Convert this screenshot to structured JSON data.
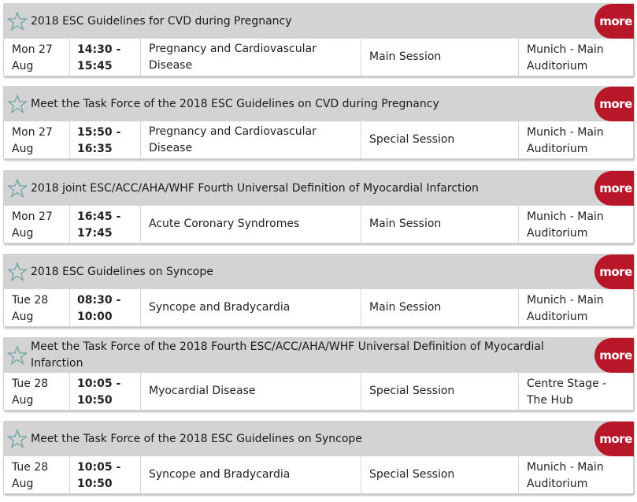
{
  "sessions": [
    {
      "title": "2018 ESC Guidelines for CVD during Pregnancy",
      "more": "more",
      "day": "Mon 27",
      "month": "Aug",
      "start": "14:30 -",
      "end": "15:45",
      "topic": "Pregnancy and Cardiovascular Disease",
      "type": "Main Session",
      "loc1": "Munich - Main",
      "loc2": "Auditorium"
    },
    {
      "title": "Meet the Task Force of the 2018 ESC Guidelines on CVD during Pregnancy",
      "more": "more",
      "day": "Mon 27",
      "month": "Aug",
      "start": "15:50 -",
      "end": "16:35",
      "topic": "Pregnancy and Cardiovascular Disease",
      "type": "Special Session",
      "loc1": "Munich - Main",
      "loc2": "Auditorium"
    },
    {
      "title": "2018 joint ESC/ACC/AHA/WHF Fourth Universal Definition of Myocardial Infarction",
      "more": "more",
      "day": "Mon 27",
      "month": "Aug",
      "start": "16:45 -",
      "end": "17:45",
      "topic": "Acute Coronary Syndromes",
      "type": "Main Session",
      "loc1": "Munich - Main",
      "loc2": "Auditorium"
    },
    {
      "title": "2018 ESC Guidelines on Syncope",
      "more": "more",
      "day": "Tue 28",
      "month": "Aug",
      "start": "08:30 -",
      "end": "10:00",
      "topic": "Syncope and Bradycardia",
      "type": "Main Session",
      "loc1": "Munich - Main",
      "loc2": "Auditorium"
    },
    {
      "title": "Meet the Task Force of the 2018 Fourth ESC/ACC/AHA/WHF Universal Definition of Myocardial Infarction",
      "more": "more",
      "day": "Tue 28",
      "month": "Aug",
      "start": "10:05 -",
      "end": "10:50",
      "topic": "Myocardial Disease",
      "type": "Special Session",
      "loc1": "Centre Stage -",
      "loc2": "The Hub"
    },
    {
      "title": "Meet the Task Force of the 2018 ESC Guidelines on Syncope",
      "more": "more",
      "day": "Tue 28",
      "month": "Aug",
      "start": "10:05 -",
      "end": "10:50",
      "topic": "Syncope and Bradycardia",
      "type": "Special Session",
      "loc1": "Munich - Main",
      "loc2": "Auditorium"
    }
  ],
  "colors": {
    "more_bg": "#b8172a",
    "header_bg": "#d3d3d3",
    "star": "#6fa3a6"
  },
  "icons": {
    "favorite": "star-outline-icon"
  }
}
